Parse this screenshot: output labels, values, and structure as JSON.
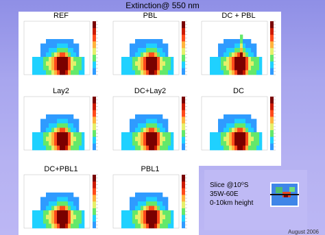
{
  "page": {
    "title": "Extinction@ 550 nm"
  },
  "slice_info": {
    "line1": "Slice @10⁰S",
    "line2": "35W-60E",
    "line3": " 0-10km height"
  },
  "footer": {
    "date": "August 2006"
  },
  "chart_data": [
    {
      "type": "heatmap",
      "title": "REF"
    },
    {
      "type": "heatmap",
      "title": "PBL"
    },
    {
      "type": "heatmap",
      "title": "DC + PBL"
    },
    {
      "type": "heatmap",
      "title": "Lay2"
    },
    {
      "type": "heatmap",
      "title": "DC+Lay2"
    },
    {
      "type": "heatmap",
      "title": "DC"
    },
    {
      "type": "heatmap",
      "title": "DC+PBL1"
    },
    {
      "type": "heatmap",
      "title": "PBL1"
    }
  ],
  "colors": {
    "background_top": "#8f8fe6",
    "background_bottom": "#bcb7f4",
    "colormap": [
      "#ffffff",
      "#2f9bff",
      "#1fd1ff",
      "#64e86a",
      "#e5f06a",
      "#ffb33c",
      "#ff4a1a",
      "#cc1a00",
      "#7a0000"
    ]
  }
}
